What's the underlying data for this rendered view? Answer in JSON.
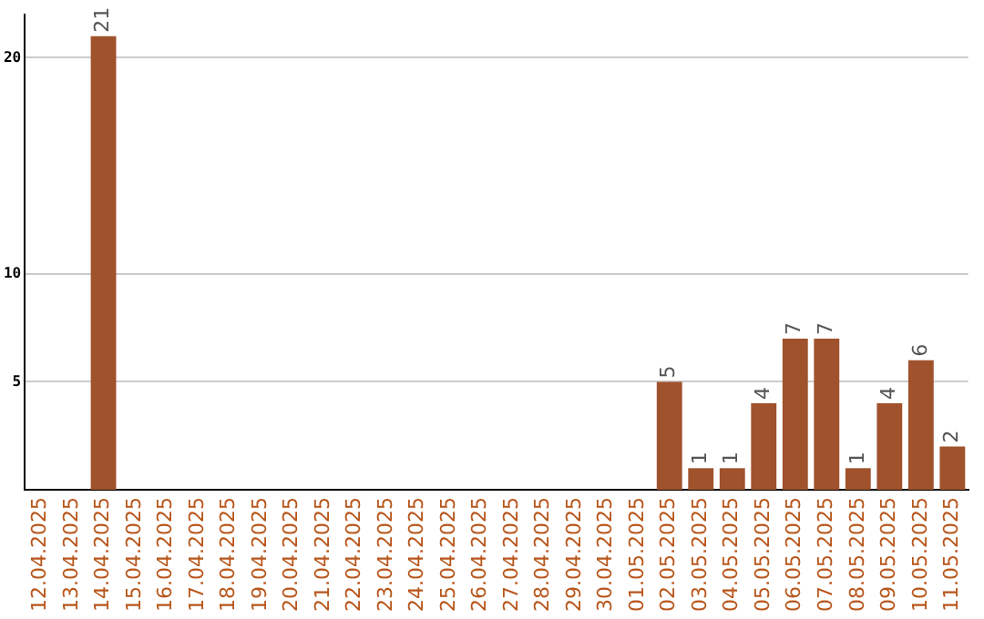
{
  "chart_data": {
    "type": "bar",
    "categories": [
      "12.04.2025",
      "13.04.2025",
      "14.04.2025",
      "15.04.2025",
      "16.04.2025",
      "17.04.2025",
      "18.04.2025",
      "19.04.2025",
      "20.04.2025",
      "21.04.2025",
      "22.04.2025",
      "23.04.2025",
      "24.04.2025",
      "25.04.2025",
      "26.04.2025",
      "27.04.2025",
      "28.04.2025",
      "29.04.2025",
      "30.04.2025",
      "01.05.2025",
      "02.05.2025",
      "03.05.2025",
      "04.05.2025",
      "05.05.2025",
      "06.05.2025",
      "07.05.2025",
      "08.05.2025",
      "09.05.2025",
      "10.05.2025",
      "11.05.2025"
    ],
    "values": [
      0,
      0,
      21,
      0,
      0,
      0,
      0,
      0,
      0,
      0,
      0,
      0,
      0,
      0,
      0,
      0,
      0,
      0,
      0,
      0,
      5,
      1,
      1,
      4,
      7,
      7,
      1,
      4,
      6,
      2
    ],
    "value_labels": [
      null,
      null,
      "21",
      null,
      null,
      null,
      null,
      null,
      null,
      null,
      null,
      null,
      null,
      null,
      null,
      null,
      null,
      null,
      null,
      null,
      "5",
      "1",
      "1",
      "4",
      "7",
      "7",
      "1",
      "4",
      "6",
      "2"
    ],
    "color": "#a0522d",
    "ylim": [
      0,
      22
    ],
    "yticks": [
      5,
      10,
      20
    ],
    "grid": "y"
  }
}
